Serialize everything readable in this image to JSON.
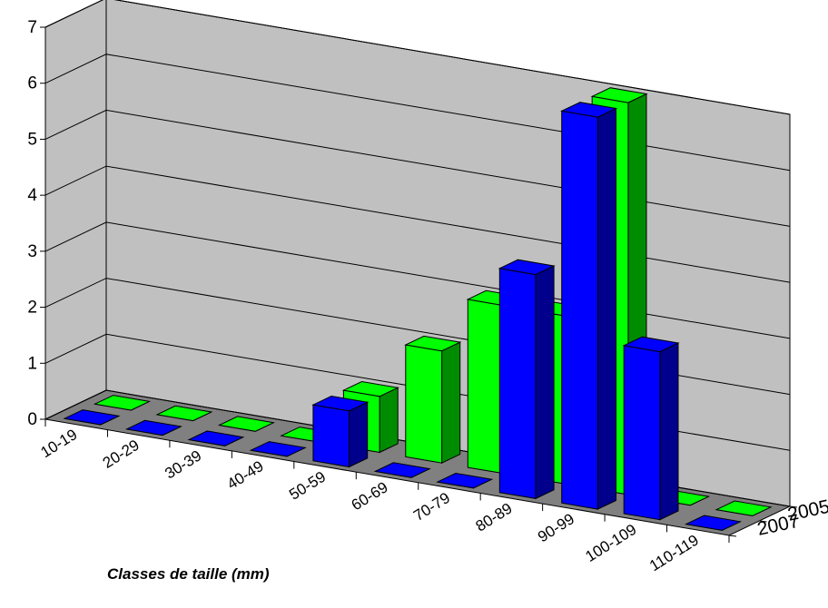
{
  "chart_data": {
    "type": "bar",
    "subtype": "3d-column",
    "title": "",
    "xlabel": "Classes de taille (mm)",
    "ylabel": "",
    "ylim": [
      0,
      7
    ],
    "yticks": [
      0,
      1,
      2,
      3,
      4,
      5,
      6,
      7
    ],
    "grid": true,
    "categories": [
      "10-19",
      "20-29",
      "30-39",
      "40-49",
      "50-59",
      "60-69",
      "70-79",
      "80-89",
      "90-99",
      "100-109",
      "110-119"
    ],
    "series": [
      {
        "name": "2007",
        "color": "#0000ff",
        "values": [
          0,
          0,
          0,
          0,
          1,
          0,
          0,
          4,
          7,
          3,
          0
        ]
      },
      {
        "name": "2005",
        "color": "#00ff00",
        "values": [
          0,
          0,
          0,
          0,
          1,
          2,
          3,
          3,
          7,
          0,
          0
        ]
      }
    ]
  }
}
